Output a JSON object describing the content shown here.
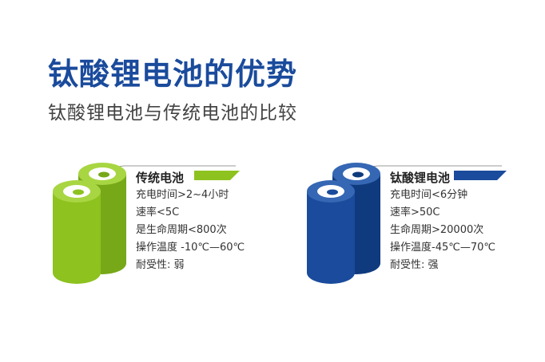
{
  "title": "钛酸锂电池的优势",
  "subtitle": "钛酸锂电池与传统电池的比较",
  "colors": {
    "title": "#1a4b9c",
    "traditional_accent": "#8dc21f",
    "lithium_accent": "#1a4b9c"
  },
  "traditional": {
    "title": "传统电池",
    "specs": [
      "充电时间>2~4小时",
      "速率<5C",
      "是生命周期<800次",
      "操作温度 -10℃—60℃",
      "耐受性: 弱"
    ]
  },
  "lithium": {
    "title": "钛酸锂电池",
    "specs": [
      "充电时间<6分钟",
      "速率>50C",
      "生命周期>20000次",
      "操作温度-45℃—70℃",
      "耐受性: 强"
    ]
  }
}
